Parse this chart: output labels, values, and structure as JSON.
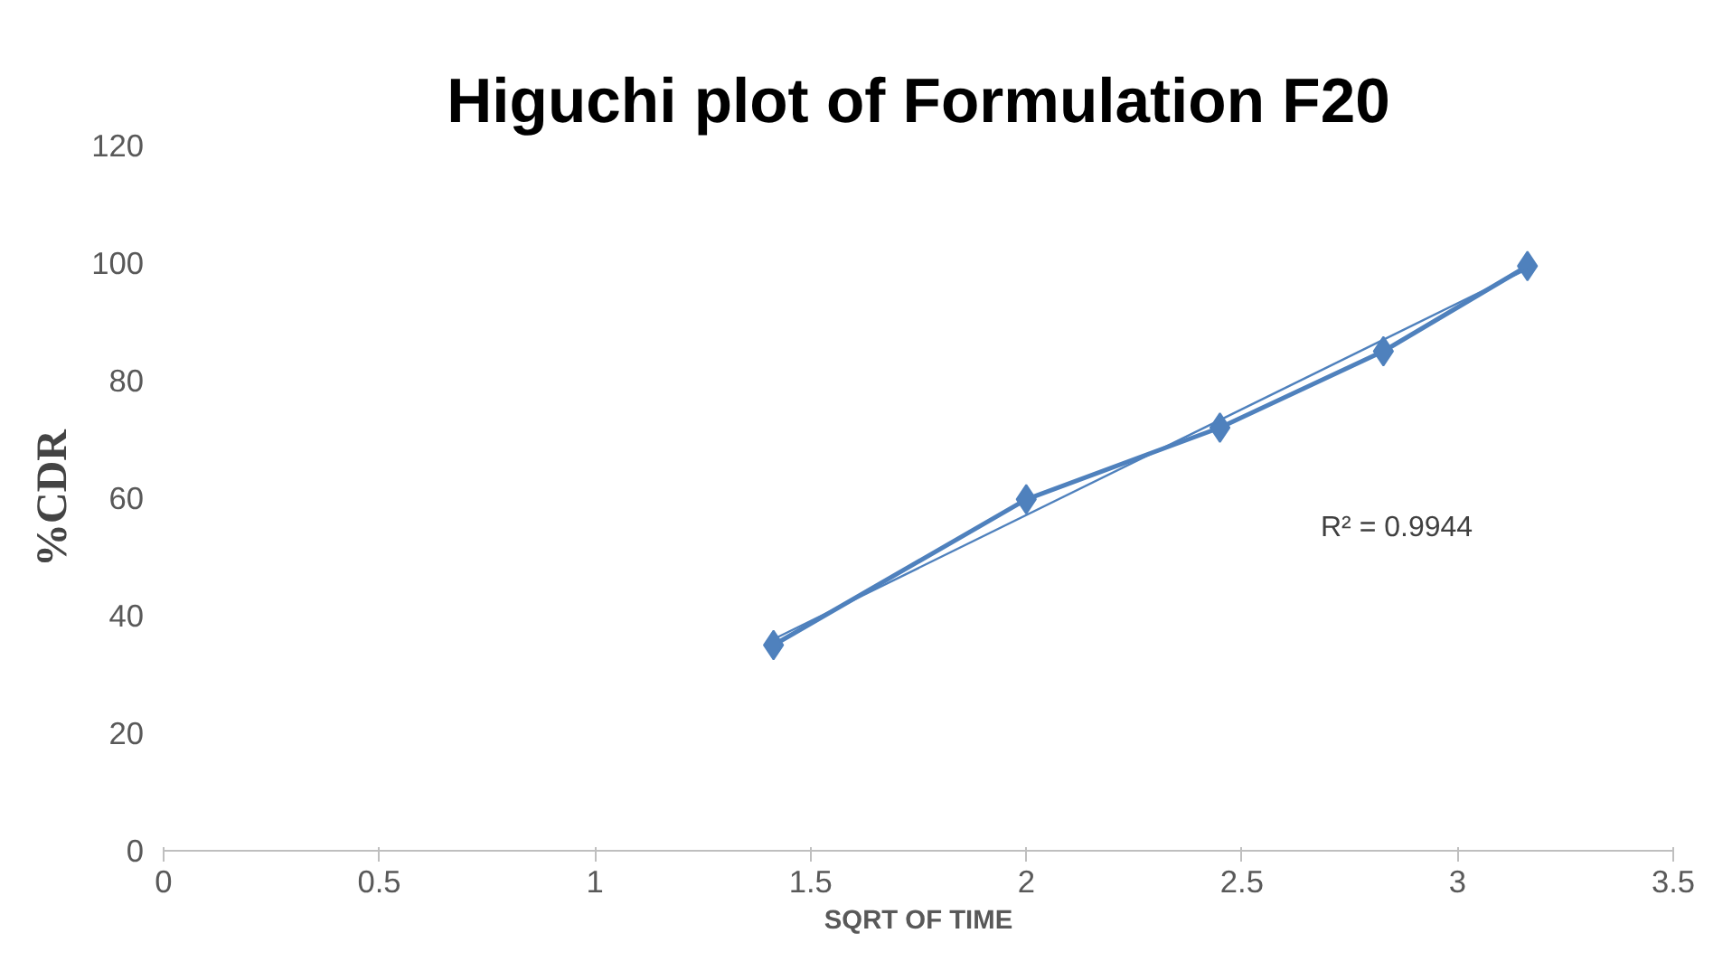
{
  "chart_data": {
    "type": "line",
    "title": "Higuchi plot of Formulation F20",
    "xlabel": "SQRT OF TIME",
    "ylabel": "%CDR",
    "x": [
      1.414,
      2,
      2.449,
      2.828,
      3.162
    ],
    "series": [
      {
        "color": "#4f81bd",
        "values": [
          35,
          59.8,
          72,
          85,
          99.5
        ],
        "marker": "diamond"
      },
      {
        "type": "line",
        "color": "#4f81bd",
        "x": [
          1.414,
          3.162
        ],
        "values": [
          36,
          99
        ],
        "marker": "none"
      }
    ],
    "xlim": [
      0,
      3.5
    ],
    "xticks": [
      0,
      0.5,
      1,
      1.5,
      2,
      2.5,
      3,
      3.5
    ],
    "ylim": [
      0,
      120
    ],
    "yticks": [
      0,
      20,
      40,
      60,
      80,
      100,
      120
    ],
    "grid": false,
    "annotations": [
      "R² = 0.9944"
    ]
  }
}
